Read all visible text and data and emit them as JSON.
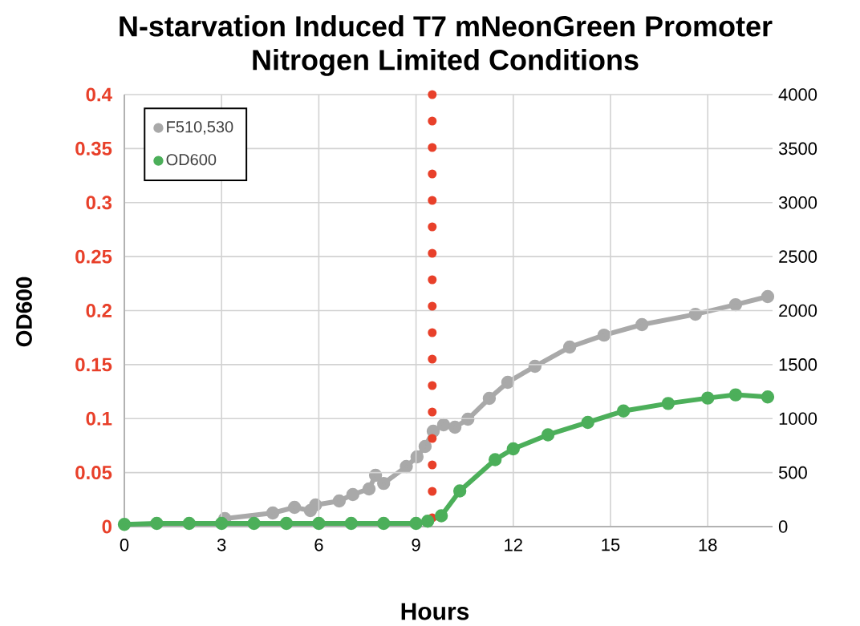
{
  "chart_data": {
    "type": "line",
    "title": "N-starvation Induced T7 mNeonGreen Promoter",
    "subtitle": "Nitrogen Limited Conditions",
    "xlabel": "Hours",
    "ylabel": "OD600",
    "xlim": [
      0,
      20
    ],
    "xticks": [
      0,
      3,
      6,
      9,
      12,
      15,
      18
    ],
    "ylim": [
      0,
      0.4
    ],
    "yticks": [
      0,
      0.05,
      0.1,
      0.15,
      0.2,
      0.25,
      0.3,
      0.35,
      0.4
    ],
    "y2lim": [
      0,
      4000
    ],
    "y2ticks": [
      0,
      500,
      1000,
      1500,
      2000,
      2500,
      3000,
      3500,
      4000
    ],
    "grid": true,
    "legend": "top left",
    "marker": "circle",
    "ref_lines": [
      {
        "axis": "x",
        "value": 9.5,
        "color": "#e8402a",
        "line_style": "dotted"
      }
    ],
    "series": [
      {
        "name": "F510,530",
        "color": "#a9a9a9",
        "axis": "y2",
        "x": [
          3.1,
          4.58,
          5.25,
          5.74,
          5.9,
          6.63,
          7.05,
          7.55,
          7.75,
          8.0,
          8.7,
          9.03,
          9.28,
          9.53,
          9.85,
          10.2,
          10.6,
          11.26,
          11.83,
          12.67,
          13.74,
          14.8,
          15.97,
          17.62,
          18.86,
          19.85
        ],
        "values": [
          74,
          126,
          178,
          148,
          200,
          237,
          297,
          349,
          475,
          400,
          556,
          645,
          742,
          883,
          942,
          920,
          994,
          1187,
          1336,
          1484,
          1662,
          1773,
          1870,
          1966,
          2055,
          2130
        ]
      },
      {
        "name": "OD600",
        "color": "#4caf5a",
        "x": [
          0,
          1,
          2,
          3,
          4,
          5,
          6,
          7,
          8,
          9,
          9.36,
          9.78,
          10.35,
          11.44,
          12.0,
          13.07,
          14.3,
          15.4,
          16.78,
          18.0,
          18.86,
          19.85
        ],
        "values": [
          0.002,
          0.003,
          0.003,
          0.003,
          0.003,
          0.003,
          0.003,
          0.003,
          0.003,
          0.003,
          0.005,
          0.01,
          0.033,
          0.062,
          0.072,
          0.085,
          0.0965,
          0.107,
          0.114,
          0.119,
          0.122,
          0.12
        ]
      }
    ]
  }
}
